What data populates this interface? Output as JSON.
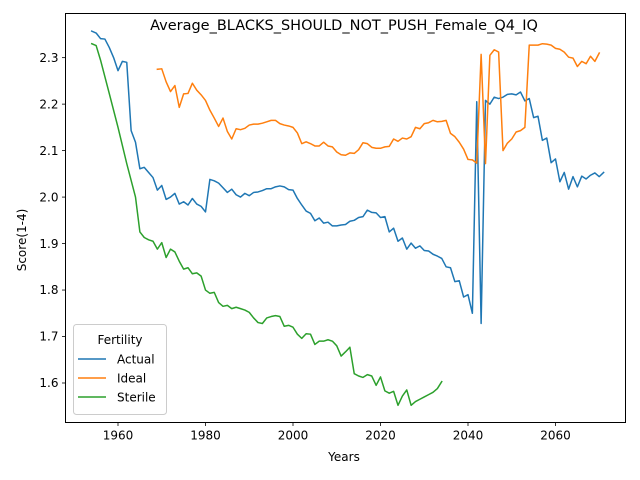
{
  "chart_data": {
    "type": "line",
    "title": "Average_BLACKS_SHOULD_NOT_PUSH_Female_Q4_IQ",
    "xlabel": "Years",
    "ylabel": "Score(1-4)",
    "xlim": [
      1948,
      2076
    ],
    "ylim": [
      1.515,
      2.395
    ],
    "xticks": [
      1960,
      1980,
      2000,
      2020,
      2040,
      2060
    ],
    "yticks": [
      1.6,
      1.7,
      1.8,
      1.9,
      2.0,
      2.1,
      2.2,
      2.3
    ],
    "grid": false,
    "legend": {
      "title": "Fertility",
      "placement": "lower-left"
    },
    "series": [
      {
        "name": "Actual",
        "color": "#1f77b4",
        "points": [
          [
            1954,
            2.357
          ],
          [
            1955,
            2.353
          ],
          [
            1956,
            2.341
          ],
          [
            1957,
            2.34
          ],
          [
            1958,
            2.322
          ],
          [
            1959,
            2.3
          ],
          [
            1960,
            2.272
          ],
          [
            1961,
            2.292
          ],
          [
            1962,
            2.29
          ],
          [
            1963,
            2.143
          ],
          [
            1964,
            2.118
          ],
          [
            1965,
            2.061
          ],
          [
            1966,
            2.064
          ],
          [
            1967,
            2.053
          ],
          [
            1968,
            2.042
          ],
          [
            1969,
            2.015
          ],
          [
            1970,
            2.025
          ],
          [
            1971,
            1.995
          ],
          [
            1972,
            2.0
          ],
          [
            1973,
            2.008
          ],
          [
            1974,
            1.985
          ],
          [
            1975,
            1.99
          ],
          [
            1976,
            1.983
          ],
          [
            1977,
            1.997
          ],
          [
            1978,
            1.985
          ],
          [
            1979,
            1.98
          ],
          [
            1980,
            1.968
          ],
          [
            1981,
            2.038
          ],
          [
            1982,
            2.035
          ],
          [
            1983,
            2.03
          ],
          [
            1984,
            2.02
          ],
          [
            1985,
            2.01
          ],
          [
            1986,
            2.017
          ],
          [
            1987,
            2.005
          ],
          [
            1988,
            2.0
          ],
          [
            1989,
            2.008
          ],
          [
            1990,
            2.003
          ],
          [
            1991,
            2.01
          ],
          [
            1992,
            2.011
          ],
          [
            1993,
            2.014
          ],
          [
            1994,
            2.018
          ],
          [
            1995,
            2.018
          ],
          [
            1996,
            2.022
          ],
          [
            1997,
            2.024
          ],
          [
            1998,
            2.022
          ],
          [
            1999,
            2.016
          ],
          [
            2000,
            2.015
          ],
          [
            2001,
            1.997
          ],
          [
            2002,
            1.983
          ],
          [
            2003,
            1.97
          ],
          [
            2004,
            1.965
          ],
          [
            2005,
            1.949
          ],
          [
            2006,
            1.955
          ],
          [
            2007,
            1.944
          ],
          [
            2008,
            1.946
          ],
          [
            2009,
            1.938
          ],
          [
            2010,
            1.938
          ],
          [
            2011,
            1.94
          ],
          [
            2012,
            1.941
          ],
          [
            2013,
            1.948
          ],
          [
            2014,
            1.95
          ],
          [
            2015,
            1.956
          ],
          [
            2016,
            1.958
          ],
          [
            2017,
            1.972
          ],
          [
            2018,
            1.967
          ],
          [
            2019,
            1.966
          ],
          [
            2020,
            1.956
          ],
          [
            2021,
            1.958
          ],
          [
            2022,
            1.925
          ],
          [
            2023,
            1.933
          ],
          [
            2024,
            1.905
          ],
          [
            2025,
            1.912
          ],
          [
            2026,
            1.888
          ],
          [
            2027,
            1.901
          ],
          [
            2028,
            1.89
          ],
          [
            2029,
            1.895
          ],
          [
            2030,
            1.885
          ],
          [
            2031,
            1.884
          ],
          [
            2032,
            1.877
          ],
          [
            2033,
            1.873
          ],
          [
            2034,
            1.868
          ],
          [
            2035,
            1.85
          ],
          [
            2036,
            1.848
          ],
          [
            2037,
            1.818
          ],
          [
            2038,
            1.82
          ],
          [
            2039,
            1.785
          ],
          [
            2040,
            1.79
          ],
          [
            2041,
            1.75
          ],
          [
            2042,
            2.205
          ],
          [
            2043,
            1.728
          ],
          [
            2044,
            2.208
          ],
          [
            2045,
            2.2
          ],
          [
            2046,
            2.215
          ],
          [
            2047,
            2.212
          ],
          [
            2048,
            2.215
          ],
          [
            2049,
            2.221
          ],
          [
            2050,
            2.222
          ],
          [
            2051,
            2.22
          ],
          [
            2052,
            2.226
          ],
          [
            2053,
            2.207
          ],
          [
            2054,
            2.212
          ],
          [
            2055,
            2.171
          ],
          [
            2056,
            2.174
          ],
          [
            2057,
            2.122
          ],
          [
            2058,
            2.127
          ],
          [
            2059,
            2.074
          ],
          [
            2060,
            2.082
          ],
          [
            2061,
            2.033
          ],
          [
            2062,
            2.053
          ],
          [
            2063,
            2.017
          ],
          [
            2064,
            2.044
          ],
          [
            2065,
            2.022
          ],
          [
            2066,
            2.045
          ],
          [
            2067,
            2.039
          ],
          [
            2068,
            2.047
          ],
          [
            2069,
            2.052
          ],
          [
            2070,
            2.044
          ],
          [
            2071,
            2.053
          ]
        ]
      },
      {
        "name": "Ideal",
        "color": "#ff7f0e",
        "points": [
          [
            1969,
            2.275
          ],
          [
            1970,
            2.276
          ],
          [
            1971,
            2.248
          ],
          [
            1972,
            2.227
          ],
          [
            1973,
            2.24
          ],
          [
            1974,
            2.193
          ],
          [
            1975,
            2.222
          ],
          [
            1976,
            2.223
          ],
          [
            1977,
            2.245
          ],
          [
            1978,
            2.23
          ],
          [
            1979,
            2.22
          ],
          [
            1980,
            2.208
          ],
          [
            1981,
            2.187
          ],
          [
            1982,
            2.17
          ],
          [
            1983,
            2.152
          ],
          [
            1984,
            2.17
          ],
          [
            1985,
            2.141
          ],
          [
            1986,
            2.125
          ],
          [
            1987,
            2.147
          ],
          [
            1988,
            2.145
          ],
          [
            1989,
            2.148
          ],
          [
            1990,
            2.155
          ],
          [
            1991,
            2.157
          ],
          [
            1992,
            2.157
          ],
          [
            1993,
            2.159
          ],
          [
            1994,
            2.162
          ],
          [
            1995,
            2.165
          ],
          [
            1996,
            2.165
          ],
          [
            1997,
            2.158
          ],
          [
            1998,
            2.155
          ],
          [
            1999,
            2.153
          ],
          [
            2000,
            2.15
          ],
          [
            2001,
            2.138
          ],
          [
            2002,
            2.115
          ],
          [
            2003,
            2.119
          ],
          [
            2004,
            2.115
          ],
          [
            2005,
            2.11
          ],
          [
            2006,
            2.11
          ],
          [
            2007,
            2.118
          ],
          [
            2008,
            2.11
          ],
          [
            2009,
            2.108
          ],
          [
            2010,
            2.097
          ],
          [
            2011,
            2.091
          ],
          [
            2012,
            2.09
          ],
          [
            2013,
            2.095
          ],
          [
            2014,
            2.094
          ],
          [
            2015,
            2.102
          ],
          [
            2016,
            2.117
          ],
          [
            2017,
            2.115
          ],
          [
            2018,
            2.107
          ],
          [
            2019,
            2.105
          ],
          [
            2020,
            2.105
          ],
          [
            2021,
            2.108
          ],
          [
            2022,
            2.109
          ],
          [
            2023,
            2.125
          ],
          [
            2024,
            2.12
          ],
          [
            2025,
            2.127
          ],
          [
            2026,
            2.125
          ],
          [
            2027,
            2.13
          ],
          [
            2028,
            2.15
          ],
          [
            2029,
            2.147
          ],
          [
            2030,
            2.158
          ],
          [
            2031,
            2.16
          ],
          [
            2032,
            2.165
          ],
          [
            2033,
            2.162
          ],
          [
            2034,
            2.163
          ],
          [
            2035,
            2.165
          ],
          [
            2036,
            2.137
          ],
          [
            2037,
            2.13
          ],
          [
            2038,
            2.118
          ],
          [
            2039,
            2.103
          ],
          [
            2040,
            2.081
          ],
          [
            2041,
            2.08
          ],
          [
            2042,
            2.073
          ],
          [
            2043,
            2.307
          ],
          [
            2044,
            2.072
          ],
          [
            2045,
            2.305
          ],
          [
            2046,
            2.317
          ],
          [
            2047,
            2.312
          ],
          [
            2048,
            2.1
          ],
          [
            2049,
            2.116
          ],
          [
            2050,
            2.125
          ],
          [
            2051,
            2.14
          ],
          [
            2052,
            2.143
          ],
          [
            2053,
            2.15
          ],
          [
            2054,
            2.327
          ],
          [
            2055,
            2.327
          ],
          [
            2056,
            2.327
          ],
          [
            2057,
            2.33
          ],
          [
            2058,
            2.329
          ],
          [
            2059,
            2.327
          ],
          [
            2060,
            2.32
          ],
          [
            2061,
            2.318
          ],
          [
            2062,
            2.312
          ],
          [
            2063,
            2.301
          ],
          [
            2064,
            2.299
          ],
          [
            2065,
            2.281
          ],
          [
            2066,
            2.292
          ],
          [
            2067,
            2.287
          ],
          [
            2068,
            2.303
          ],
          [
            2069,
            2.292
          ],
          [
            2070,
            2.31
          ]
        ]
      },
      {
        "name": "Sterile",
        "color": "#2ca02c",
        "points": [
          [
            1954,
            2.33
          ],
          [
            1955,
            2.326
          ],
          [
            1956,
            2.295
          ],
          [
            1958,
            2.223
          ],
          [
            1960,
            2.15
          ],
          [
            1962,
            2.072
          ],
          [
            1964,
            2.0
          ],
          [
            1965,
            1.925
          ],
          [
            1966,
            1.913
          ],
          [
            1967,
            1.908
          ],
          [
            1968,
            1.905
          ],
          [
            1969,
            1.888
          ],
          [
            1970,
            1.902
          ],
          [
            1971,
            1.87
          ],
          [
            1972,
            1.888
          ],
          [
            1973,
            1.882
          ],
          [
            1974,
            1.862
          ],
          [
            1975,
            1.845
          ],
          [
            1976,
            1.848
          ],
          [
            1977,
            1.835
          ],
          [
            1978,
            1.837
          ],
          [
            1979,
            1.83
          ],
          [
            1980,
            1.8
          ],
          [
            1981,
            1.793
          ],
          [
            1982,
            1.795
          ],
          [
            1983,
            1.773
          ],
          [
            1984,
            1.765
          ],
          [
            1985,
            1.767
          ],
          [
            1986,
            1.76
          ],
          [
            1987,
            1.763
          ],
          [
            1988,
            1.76
          ],
          [
            1989,
            1.757
          ],
          [
            1990,
            1.752
          ],
          [
            1991,
            1.74
          ],
          [
            1992,
            1.73
          ],
          [
            1993,
            1.728
          ],
          [
            1994,
            1.74
          ],
          [
            1995,
            1.743
          ],
          [
            1996,
            1.745
          ],
          [
            1997,
            1.743
          ],
          [
            1998,
            1.722
          ],
          [
            1999,
            1.724
          ],
          [
            2000,
            1.72
          ],
          [
            2001,
            1.705
          ],
          [
            2002,
            1.696
          ],
          [
            2003,
            1.706
          ],
          [
            2004,
            1.705
          ],
          [
            2005,
            1.683
          ],
          [
            2006,
            1.69
          ],
          [
            2007,
            1.69
          ],
          [
            2008,
            1.693
          ],
          [
            2009,
            1.69
          ],
          [
            2010,
            1.68
          ],
          [
            2011,
            1.658
          ],
          [
            2012,
            1.667
          ],
          [
            2013,
            1.677
          ],
          [
            2014,
            1.62
          ],
          [
            2015,
            1.615
          ],
          [
            2016,
            1.612
          ],
          [
            2017,
            1.618
          ],
          [
            2018,
            1.615
          ],
          [
            2019,
            1.595
          ],
          [
            2020,
            1.613
          ],
          [
            2021,
            1.583
          ],
          [
            2022,
            1.578
          ],
          [
            2023,
            1.582
          ],
          [
            2024,
            1.552
          ],
          [
            2025,
            1.572
          ],
          [
            2026,
            1.585
          ],
          [
            2027,
            1.552
          ],
          [
            2028,
            1.56
          ],
          [
            2029,
            1.565
          ],
          [
            2030,
            1.57
          ],
          [
            2031,
            1.575
          ],
          [
            2032,
            1.58
          ],
          [
            2033,
            1.588
          ],
          [
            2034,
            1.603
          ]
        ]
      }
    ]
  }
}
